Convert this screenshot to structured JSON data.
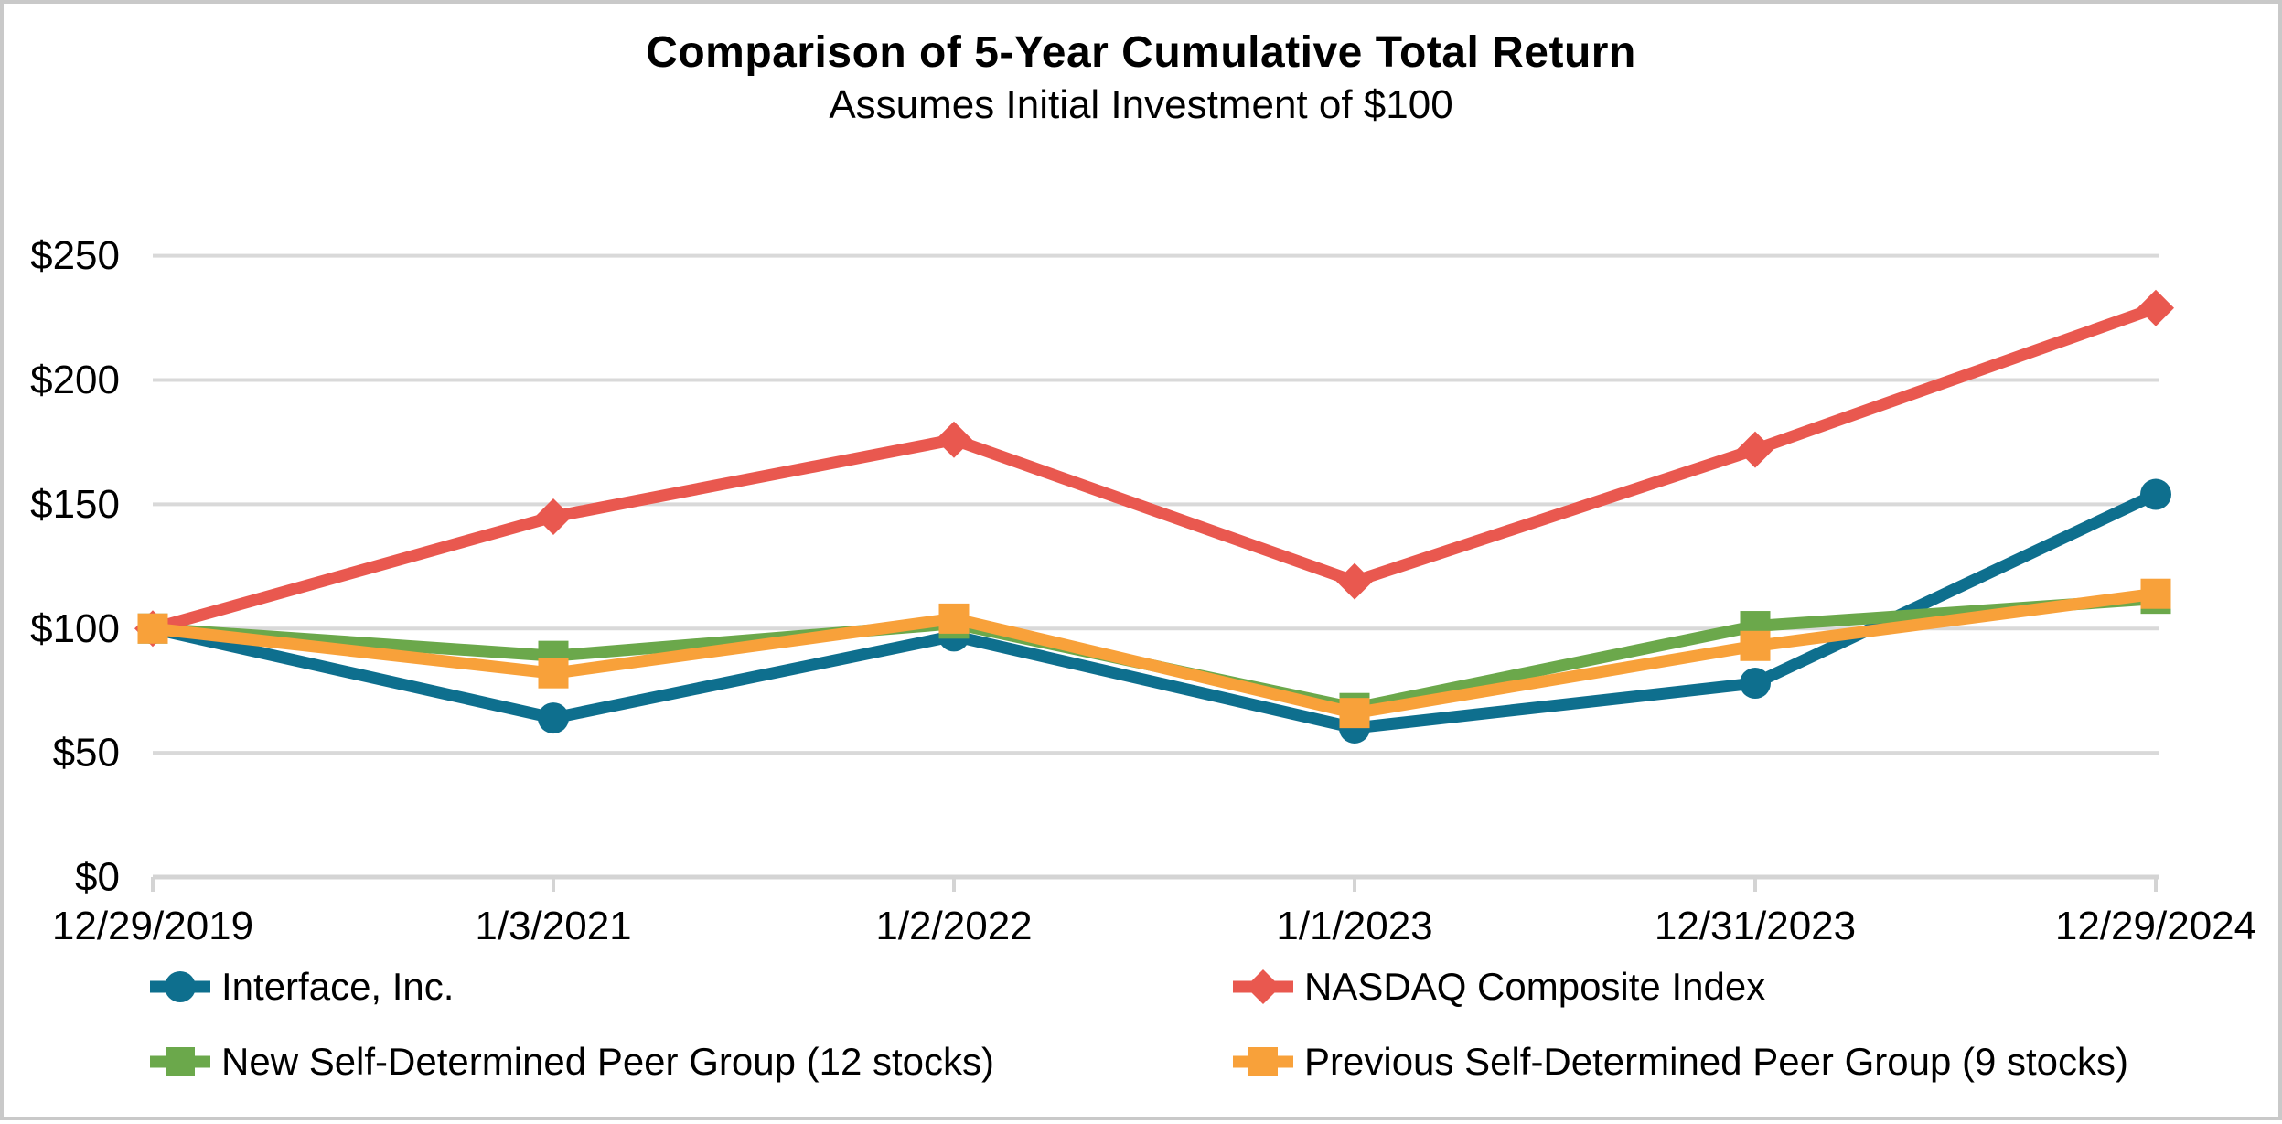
{
  "frame": {
    "border_color": "#c9c9c9",
    "background": "#ffffff"
  },
  "chart_data": {
    "type": "line",
    "title": "Comparison of 5-Year Cumulative Total Return",
    "subtitle": "Assumes Initial Investment of $100",
    "categories": [
      "12/29/2019",
      "1/3/2021",
      "1/2/2022",
      "1/1/2023",
      "12/31/2023",
      "12/29/2024"
    ],
    "series": [
      {
        "name": "Interface, Inc.",
        "color": "#0E6F8E",
        "marker": "circle",
        "values": [
          100,
          64,
          97,
          60,
          78,
          154
        ]
      },
      {
        "name": "NASDAQ Composite Index",
        "color": "#E9584F",
        "marker": "diamond",
        "values": [
          100,
          145,
          176,
          119,
          172,
          229
        ]
      },
      {
        "name": "New Self-Determined Peer Group (12 stocks)",
        "color": "#6BA84B",
        "marker": "square",
        "values": [
          100,
          89,
          102,
          68,
          101,
          112
        ]
      },
      {
        "name": "Previous Self-Determined Peer Group (9 stocks)",
        "color": "#F8A13A",
        "marker": "square",
        "values": [
          100,
          82,
          104,
          66,
          93,
          114
        ]
      }
    ],
    "y_axis": {
      "tick_labels": [
        "$0",
        "$50",
        "$100",
        "$150",
        "$200",
        "$250"
      ],
      "min": 0,
      "max": 250,
      "step": 50,
      "prefix": "$"
    },
    "grid": true,
    "legend_position": "bottom",
    "gridline_color": "#D9D9D9",
    "axis_line_color": "#D4D4D4",
    "text_color": "#000000"
  }
}
